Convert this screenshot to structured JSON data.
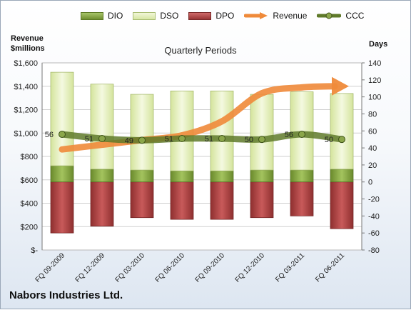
{
  "legend": {
    "dio": "DIO",
    "dso": "DSO",
    "dpo": "DPO",
    "revenue": "Revenue",
    "ccc": "CCC"
  },
  "left_axis_title_line1": "Revenue",
  "left_axis_title_line2": "$millions",
  "right_axis_title": "Days",
  "chart_title": "Quarterly Periods",
  "company": "Nabors Industries Ltd.",
  "colors": {
    "dio": "#7a9a3a",
    "dso": "#e6f0c0",
    "dpo": "#b04545",
    "revenue": "#ef8a3a",
    "ccc": "#5f7a2a"
  },
  "chart_data": {
    "type": "bar",
    "categories": [
      "FQ 09-2009",
      "FQ 12-2009",
      "FQ 03-2010",
      "FQ 06-2010",
      "FQ 09-2010",
      "FQ 12-2010",
      "FQ 03-2011",
      "FQ 06-2011"
    ],
    "left_axis": {
      "ylim": [
        0,
        1600
      ],
      "ticks": [
        "$-",
        "$200",
        "$400",
        "$600",
        "$800",
        "$1,000",
        "$1,200",
        "$1,400",
        "$1,600"
      ]
    },
    "right_axis": {
      "ylim": [
        -80,
        140
      ],
      "ticks": [
        "-80",
        "-60",
        "-40",
        "-20",
        "0",
        "20",
        "40",
        "60",
        "80",
        "100",
        "120",
        "140"
      ]
    },
    "series": [
      {
        "name": "DIO",
        "axis": "days",
        "values": [
          19,
          15,
          14,
          13,
          13,
          14,
          14,
          15
        ]
      },
      {
        "name": "DSO",
        "axis": "days",
        "values": [
          110,
          100,
          89,
          94,
          94,
          89,
          92,
          89
        ]
      },
      {
        "name": "DPO",
        "axis": "days",
        "values": [
          -60,
          -52,
          -42,
          -44,
          -44,
          -42,
          -40,
          -55
        ]
      },
      {
        "name": "Revenue",
        "axis": "revenue",
        "values": [
          860,
          900,
          940,
          980,
          1100,
          1340,
          1390,
          1400
        ]
      },
      {
        "name": "CCC",
        "axis": "days",
        "values": [
          56,
          51,
          49,
          51,
          51,
          50,
          56,
          50
        ]
      }
    ],
    "ccc_labels": [
      "56",
      "51",
      "49",
      "51",
      "51",
      "50",
      "56",
      "50"
    ]
  }
}
